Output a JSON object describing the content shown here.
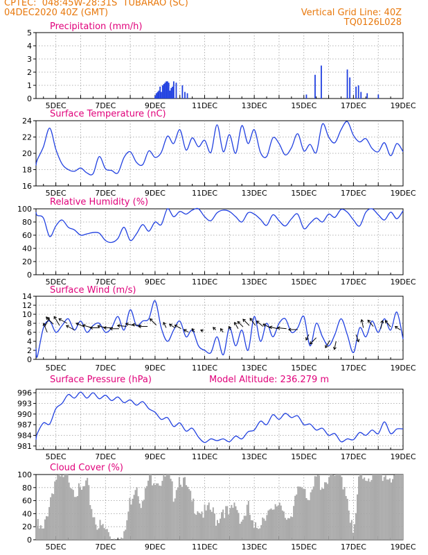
{
  "header": {
    "line1": "CPTEC:  048:45W-28:31S  TUBARAO (SC)",
    "line2": "04DEC2020 40Z (GMT)",
    "grid_note": "Vertical Grid Line: 40Z",
    "code": "TQ0126L028"
  },
  "colors": {
    "header": "#e8780c",
    "title": "#e0007a",
    "series": "#1f3fe0",
    "cloud": "#a9a9a9",
    "arrow": "#000000",
    "grid": "#999999"
  },
  "x_tick_labels": [
    "5DEC",
    "7DEC",
    "9DEC",
    "11DEC",
    "13DEC",
    "15DEC",
    "17DEC",
    "19DEC"
  ],
  "chart_data": [
    {
      "type": "bar",
      "title": "Precipitation (mm/h)",
      "ylim": [
        0,
        5
      ],
      "yticks": [
        "0",
        "1",
        "2",
        "3",
        "4",
        "5"
      ],
      "bars": [
        [
          9.0,
          0.2
        ],
        [
          9.05,
          0.4
        ],
        [
          9.1,
          0.5
        ],
        [
          9.15,
          0.6
        ],
        [
          9.2,
          0.9
        ],
        [
          9.25,
          0.5
        ],
        [
          9.3,
          1.0
        ],
        [
          9.35,
          1.1
        ],
        [
          9.4,
          1.2
        ],
        [
          9.45,
          1.3
        ],
        [
          9.5,
          1.3
        ],
        [
          9.55,
          1.2
        ],
        [
          9.6,
          0.6
        ],
        [
          9.65,
          0.8
        ],
        [
          9.7,
          0.9
        ],
        [
          9.75,
          1.3
        ],
        [
          9.85,
          1.2
        ],
        [
          10.1,
          1.0
        ],
        [
          10.2,
          0.5
        ],
        [
          10.3,
          0.4
        ],
        [
          15.1,
          0.3
        ],
        [
          15.45,
          1.8
        ],
        [
          15.7,
          2.5
        ],
        [
          16.75,
          2.2
        ],
        [
          16.85,
          1.6
        ],
        [
          17.1,
          0.9
        ],
        [
          17.2,
          1.0
        ],
        [
          17.3,
          0.5
        ],
        [
          17.55,
          0.4
        ],
        [
          18.0,
          0.3
        ]
      ]
    },
    {
      "type": "line",
      "title": "Surface Temperature (nC)",
      "ylim": [
        16,
        24
      ],
      "yticks": [
        "16",
        "18",
        "20",
        "22",
        "24"
      ],
      "x": [
        4.0,
        4.25,
        4.5,
        4.75,
        5.0,
        5.25,
        5.5,
        5.75,
        6.0,
        6.25,
        6.5,
        6.75,
        7.0,
        7.25,
        7.5,
        7.75,
        8.0,
        8.25,
        8.5,
        8.75,
        9.0,
        9.25,
        9.5,
        9.75,
        10.0,
        10.25,
        10.5,
        10.75,
        11.0,
        11.25,
        11.5,
        11.75,
        12.0,
        12.25,
        12.5,
        12.75,
        13.0,
        13.25,
        13.5,
        13.75,
        14.0,
        14.25,
        14.5,
        14.75,
        15.0,
        15.25,
        15.5,
        15.75,
        16.0,
        16.25,
        16.5,
        16.75,
        17.0,
        17.25,
        17.5,
        17.75,
        18.0,
        18.25,
        18.5,
        18.75,
        19.0
      ],
      "y": [
        18.5,
        19.2,
        20.8,
        23.1,
        20.5,
        18.7,
        18.0,
        17.8,
        18.2,
        17.6,
        17.5,
        19.6,
        18.1,
        17.9,
        17.6,
        19.5,
        20.2,
        18.9,
        18.6,
        20.3,
        19.5,
        20.1,
        22.1,
        21.2,
        22.9,
        20.4,
        21.9,
        20.8,
        21.6,
        20.1,
        23.5,
        20.2,
        22.3,
        20.0,
        23.4,
        21.2,
        22.9,
        20.1,
        19.6,
        21.9,
        21.2,
        19.8,
        20.7,
        22.4,
        20.3,
        21.1,
        20.1,
        23.6,
        22.0,
        21.3,
        22.9,
        23.9,
        22.2,
        21.4,
        21.8,
        20.6,
        20.2,
        21.3,
        19.7,
        21.2,
        20.2
      ]
    },
    {
      "type": "line",
      "title": "Relative Humidity (%)",
      "ylim": [
        0,
        100
      ],
      "yticks": [
        "0",
        "20",
        "40",
        "60",
        "80",
        "100"
      ],
      "x": [
        4.0,
        4.25,
        4.5,
        4.75,
        5.0,
        5.25,
        5.5,
        5.75,
        6.0,
        6.25,
        6.5,
        6.75,
        7.0,
        7.25,
        7.5,
        7.75,
        8.0,
        8.25,
        8.5,
        8.75,
        9.0,
        9.25,
        9.5,
        9.75,
        10.0,
        10.25,
        10.5,
        10.75,
        11.0,
        11.25,
        11.5,
        11.75,
        12.0,
        12.25,
        12.5,
        12.75,
        13.0,
        13.25,
        13.5,
        13.75,
        14.0,
        14.25,
        14.5,
        14.75,
        15.0,
        15.25,
        15.5,
        15.75,
        16.0,
        16.25,
        16.5,
        16.75,
        17.0,
        17.25,
        17.5,
        17.75,
        18.0,
        18.25,
        18.5,
        18.75,
        19.0
      ],
      "y": [
        95,
        90,
        86,
        58,
        74,
        83,
        72,
        68,
        60,
        62,
        64,
        63,
        52,
        49,
        55,
        72,
        52,
        62,
        76,
        66,
        80,
        76,
        100,
        88,
        96,
        92,
        98,
        100,
        88,
        82,
        94,
        98,
        96,
        88,
        80,
        94,
        92,
        84,
        75,
        91,
        82,
        74,
        85,
        92,
        70,
        78,
        86,
        80,
        92,
        87,
        99,
        95,
        83,
        74,
        95,
        100,
        91,
        83,
        95,
        85,
        97
      ]
    },
    {
      "type": "line",
      "title": "Surface Wind (m/s)",
      "ylim": [
        0,
        14
      ],
      "yticks": [
        "0",
        "2",
        "4",
        "6",
        "8",
        "10",
        "12",
        "14"
      ],
      "x": [
        4.0,
        4.25,
        4.5,
        4.75,
        5.0,
        5.25,
        5.5,
        5.75,
        6.0,
        6.25,
        6.5,
        6.75,
        7.0,
        7.25,
        7.5,
        7.75,
        8.0,
        8.25,
        8.5,
        8.75,
        9.0,
        9.25,
        9.5,
        9.75,
        10.0,
        10.25,
        10.5,
        10.75,
        11.0,
        11.25,
        11.5,
        11.75,
        12.0,
        12.25,
        12.5,
        12.75,
        13.0,
        13.25,
        13.5,
        13.75,
        14.0,
        14.25,
        14.5,
        14.75,
        15.0,
        15.25,
        15.5,
        15.75,
        16.0,
        16.25,
        16.5,
        16.75,
        17.0,
        17.25,
        17.5,
        17.75,
        18.0,
        18.25,
        18.5,
        18.75,
        19.0
      ],
      "y": [
        2.5,
        0.6,
        7.0,
        8.5,
        6.0,
        7.5,
        9.0,
        6.5,
        8.5,
        6.0,
        7.5,
        8.0,
        6.0,
        7.0,
        9.5,
        6.5,
        11.0,
        7.5,
        8.5,
        9.0,
        13.0,
        7.0,
        4.0,
        6.5,
        8.5,
        5.0,
        6.5,
        3.0,
        2.0,
        1.5,
        5.0,
        1.0,
        7.0,
        3.0,
        6.5,
        2.0,
        9.5,
        4.0,
        8.0,
        5.0,
        8.0,
        9.0,
        6.0,
        7.0,
        9.5,
        3.0,
        8.0,
        5.0,
        3.0,
        5.5,
        9.0,
        5.5,
        1.5,
        7.0,
        5.0,
        8.5,
        6.0,
        9.0,
        6.5,
        10.5,
        4.5
      ],
      "vectors": [
        [
          4.55,
          7.2,
          0.5,
          1.0
        ],
        [
          4.65,
          6.0,
          -0.4,
          1.0
        ],
        [
          4.9,
          7.8,
          -0.8,
          0.8
        ],
        [
          5.15,
          7.5,
          -0.6,
          1.0
        ],
        [
          5.45,
          8.0,
          -0.9,
          0.5
        ],
        [
          5.75,
          6.5,
          -0.9,
          0.5
        ],
        [
          6.15,
          7.2,
          -0.9,
          0.4
        ],
        [
          6.45,
          7.0,
          -1.0,
          0.3
        ],
        [
          6.75,
          7.0,
          -1.0,
          0.0
        ],
        [
          7.05,
          7.0,
          -1.0,
          0.2
        ],
        [
          7.3,
          7.0,
          -1.0,
          0.0
        ],
        [
          7.55,
          6.8,
          -1.0,
          0.0
        ],
        [
          7.85,
          7.3,
          -1.0,
          0.1
        ],
        [
          8.15,
          7.5,
          -0.9,
          0.2
        ],
        [
          8.45,
          7.5,
          -1.0,
          0.1
        ],
        [
          8.7,
          7.3,
          -1.0,
          0.0
        ],
        [
          9.05,
          7.6,
          -0.7,
          0.7
        ],
        [
          9.45,
          7.0,
          -0.3,
          0.6
        ],
        [
          9.8,
          7.0,
          -0.6,
          0.4
        ],
        [
          10.05,
          6.8,
          -0.7,
          0.4
        ],
        [
          10.35,
          6.0,
          -0.5,
          0.3
        ],
        [
          10.6,
          6.0,
          -0.3,
          0.4
        ],
        [
          10.95,
          6.3,
          -0.3,
          0.1
        ],
        [
          11.45,
          6.5,
          -0.3,
          0.3
        ],
        [
          11.75,
          6.0,
          -0.3,
          0.4
        ],
        [
          12.05,
          6.5,
          -0.2,
          0.4
        ],
        [
          12.35,
          6.8,
          -0.4,
          0.7
        ],
        [
          12.55,
          7.2,
          -0.6,
          0.6
        ],
        [
          12.8,
          7.5,
          -0.7,
          0.7
        ],
        [
          13.05,
          7.5,
          -0.6,
          0.8
        ],
        [
          13.35,
          7.3,
          -0.7,
          0.6
        ],
        [
          13.65,
          7.0,
          -0.8,
          0.4
        ],
        [
          13.95,
          6.8,
          -0.9,
          0.2
        ],
        [
          14.3,
          6.8,
          -1.0,
          0.1
        ],
        [
          14.75,
          6.6,
          -1.0,
          0.0
        ],
        [
          15.2,
          5.5,
          -0.3,
          -0.6
        ],
        [
          15.5,
          4.8,
          -0.7,
          -0.7
        ],
        [
          16.05,
          4.2,
          -0.5,
          -0.8
        ],
        [
          16.3,
          4.0,
          -0.2,
          -0.9
        ],
        [
          17.1,
          5.5,
          0.3,
          -0.8
        ],
        [
          17.4,
          7.0,
          -0.2,
          0.9
        ],
        [
          17.8,
          7.3,
          -0.6,
          0.7
        ],
        [
          18.1,
          6.8,
          0.2,
          0.9
        ],
        [
          18.5,
          7.2,
          -0.6,
          0.7
        ],
        [
          18.9,
          6.5,
          -0.6,
          0.4
        ]
      ]
    },
    {
      "type": "line",
      "title": "Surface Pressure (hPa)",
      "annotation": "Model Altitude: 236.279 m",
      "ylim": [
        980,
        997
      ],
      "yticks": [
        "981",
        "984",
        "987",
        "990",
        "993",
        "996"
      ],
      "x": [
        4.0,
        4.25,
        4.5,
        4.75,
        5.0,
        5.25,
        5.5,
        5.75,
        6.0,
        6.25,
        6.5,
        6.75,
        7.0,
        7.25,
        7.5,
        7.75,
        8.0,
        8.25,
        8.5,
        8.75,
        9.0,
        9.25,
        9.5,
        9.75,
        10.0,
        10.25,
        10.5,
        10.75,
        11.0,
        11.25,
        11.5,
        11.75,
        12.0,
        12.25,
        12.5,
        12.75,
        13.0,
        13.25,
        13.5,
        13.75,
        14.0,
        14.25,
        14.5,
        14.75,
        15.0,
        15.25,
        15.5,
        15.75,
        16.0,
        16.25,
        16.5,
        16.75,
        17.0,
        17.25,
        17.5,
        17.75,
        18.0,
        18.25,
        18.5,
        18.75,
        19.0
      ],
      "y": [
        982.8,
        984.5,
        987.5,
        987.2,
        991.5,
        993.0,
        995.5,
        994.5,
        996.2,
        994.5,
        996.0,
        994.3,
        995.3,
        993.8,
        994.8,
        993.2,
        994.0,
        992.5,
        993.5,
        991.5,
        990.5,
        988.5,
        989.0,
        986.5,
        987.5,
        985.2,
        986.0,
        983.5,
        982.0,
        983.0,
        982.5,
        983.0,
        982.2,
        983.8,
        983.0,
        985.0,
        985.5,
        988.0,
        987.0,
        989.8,
        988.5,
        990.2,
        989.0,
        989.5,
        987.0,
        987.2,
        985.5,
        986.0,
        984.0,
        984.5,
        982.2,
        983.0,
        982.8,
        984.8,
        984.0,
        985.5,
        984.5,
        987.8,
        984.5,
        985.8,
        985.8
      ]
    },
    {
      "type": "area",
      "title": "Cloud Cover (%)",
      "ylim": [
        0,
        100
      ],
      "yticks": [
        "0",
        "20",
        "40",
        "60",
        "80",
        "100"
      ],
      "x": [
        4.0,
        4.25,
        4.5,
        4.75,
        5.0,
        5.25,
        5.5,
        5.75,
        6.0,
        6.25,
        6.5,
        6.75,
        7.0,
        7.25,
        7.5,
        7.75,
        8.0,
        8.25,
        8.5,
        8.75,
        9.0,
        9.25,
        9.5,
        9.75,
        10.0,
        10.25,
        10.5,
        10.75,
        11.0,
        11.25,
        11.5,
        11.75,
        12.0,
        12.25,
        12.5,
        12.75,
        13.0,
        13.25,
        13.5,
        13.75,
        14.0,
        14.25,
        14.5,
        14.75,
        15.0,
        15.25,
        15.5,
        15.75,
        16.0,
        16.25,
        16.5,
        16.75,
        17.0,
        17.25,
        17.5,
        17.75,
        18.0,
        18.25,
        18.5,
        18.75,
        19.0
      ],
      "y": [
        30,
        20,
        10,
        60,
        95,
        90,
        98,
        80,
        70,
        85,
        40,
        20,
        15,
        5,
        1,
        1,
        60,
        90,
        50,
        95,
        97,
        90,
        98,
        70,
        100,
        80,
        55,
        50,
        40,
        45,
        30,
        50,
        35,
        55,
        30,
        50,
        10,
        30,
        45,
        35,
        60,
        45,
        20,
        80,
        90,
        55,
        95,
        85,
        98,
        95,
        100,
        70,
        0,
        100,
        99,
        100,
        98,
        100,
        97,
        100,
        99
      ]
    }
  ]
}
